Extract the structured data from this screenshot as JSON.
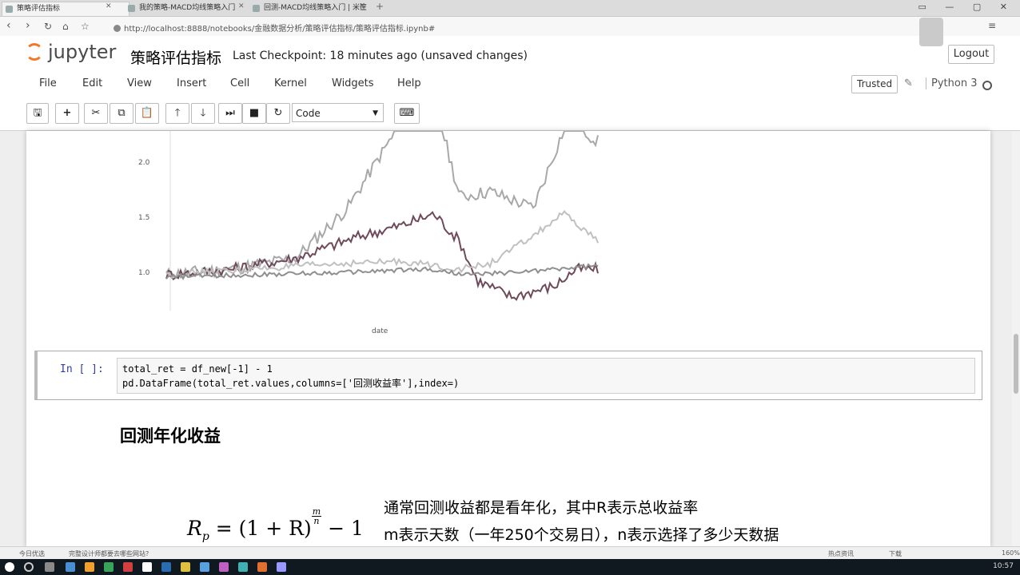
{
  "browser": {
    "tabs": [
      {
        "label": "策略评估指标",
        "active": true
      },
      {
        "label": "我的策略-MACD均线策略入门",
        "active": false
      },
      {
        "label": "回测-MACD均线策略入门 | 米筐",
        "active": false
      }
    ],
    "url": "http://localhost:8888/notebooks/金融数据分析/策略评估指标/策略评估指标.ipynb#"
  },
  "jupyter": {
    "logo_text": "jupyter",
    "notebook_title": "策略评估指标",
    "checkpoint": "Last Checkpoint: 18 minutes ago (unsaved changes)",
    "logout_label": "Logout",
    "menu": [
      "File",
      "Edit",
      "View",
      "Insert",
      "Cell",
      "Kernel",
      "Widgets",
      "Help"
    ],
    "trusted_label": "Trusted",
    "kernel_name": "Python 3",
    "cell_type": "Code"
  },
  "chart_data": {
    "type": "line",
    "xlabel": "date",
    "ylabel": "",
    "y_ticks": [
      "2.0",
      "1.5",
      "1.0"
    ],
    "ylim": [
      0.85,
      2.15
    ],
    "series_colors": [
      "#a8a8a8",
      "#6e4a5a",
      "#c0c0c0",
      "#8f8f8f"
    ]
  },
  "cell": {
    "prompt": "In [ ]:",
    "line1": "total_ret = df_new[-1] - 1",
    "line2": "pd.DataFrame(total_ret.values,columns=['回测收益率'],index=)"
  },
  "markdown": {
    "heading": "回测年化收益",
    "formula_lhs": "R",
    "formula_sub": "p",
    "formula_rhs": " = (1 + R)",
    "formula_exp_num": "m",
    "formula_exp_den": "n",
    "formula_tail": " − 1",
    "note_line1": "通常回测收益都是看年化，其中R表示总收益率",
    "note_line2": "m表示天数（一年250个交易日），n表示选择了多少天数据"
  },
  "statusbar": {
    "left1": "今日优选",
    "left2": "完整设计师都要去哪些网站?",
    "right1": "热点资讯",
    "right2": "下载",
    "zoom": "160%"
  },
  "taskbar": {
    "clock": "10:57"
  }
}
